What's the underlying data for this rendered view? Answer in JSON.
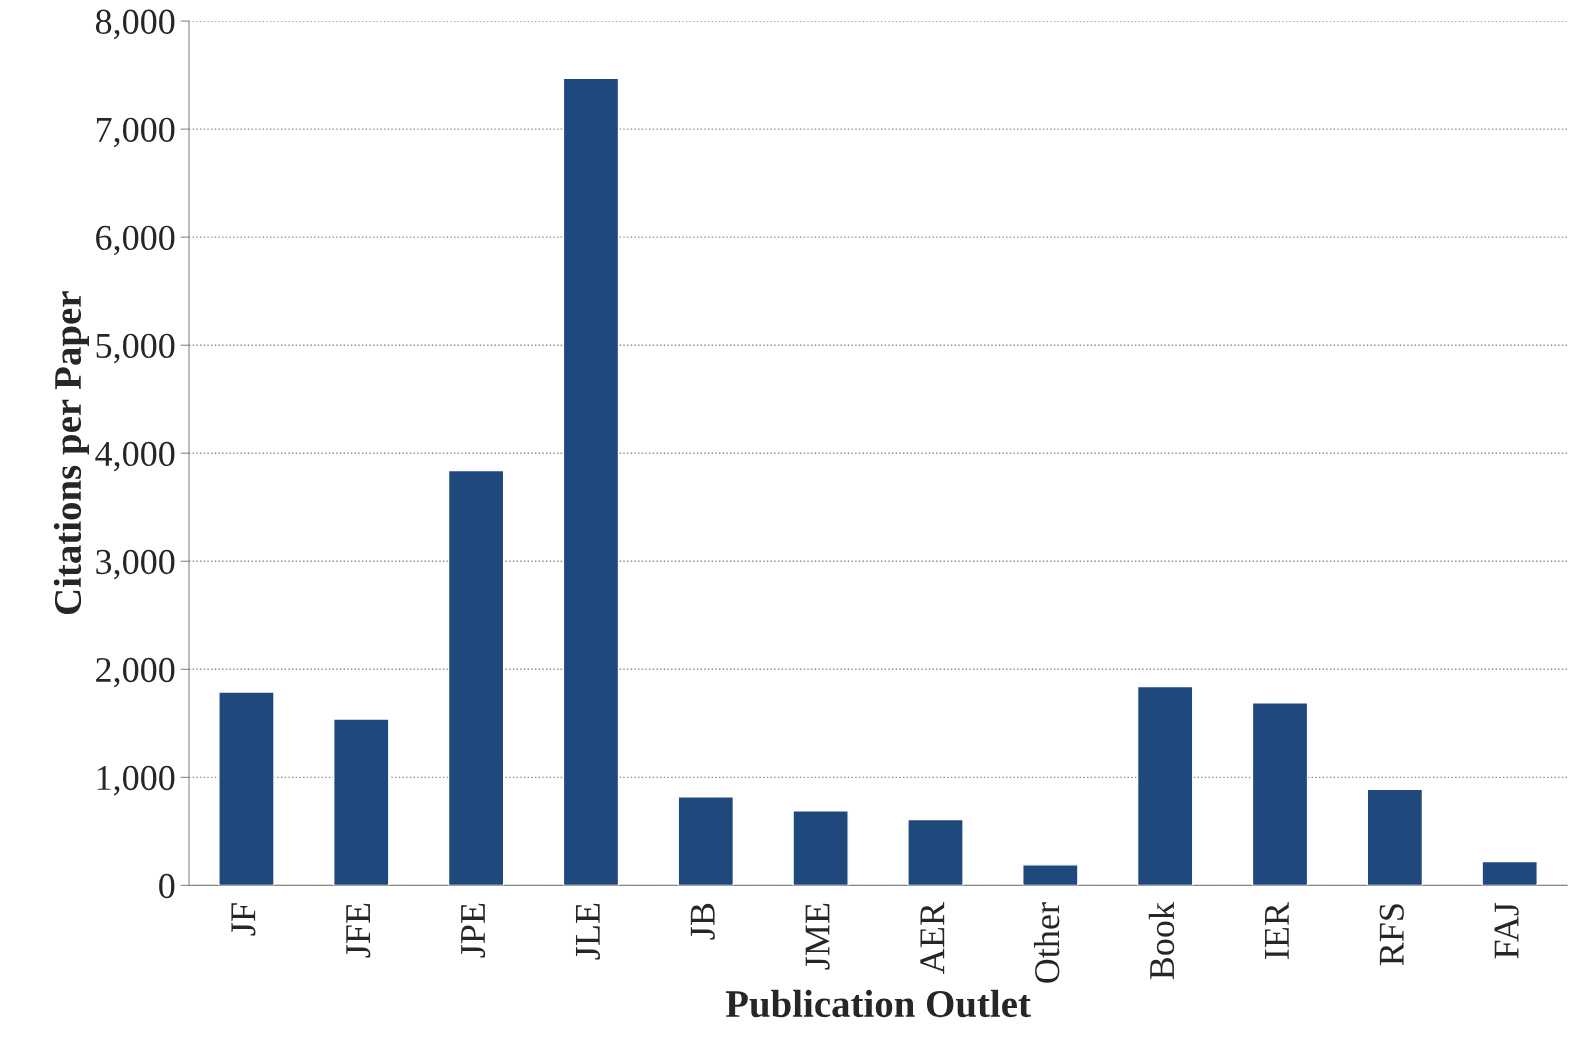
{
  "chart_data": {
    "type": "bar",
    "xlabel": "Publication Outlet",
    "ylabel": "Citations per Paper",
    "categories": [
      "JF",
      "JFE",
      "JPE",
      "JLE",
      "JB",
      "JME",
      "AER",
      "Other",
      "Book",
      "IER",
      "RFS",
      "FAJ"
    ],
    "values": [
      1790,
      1540,
      3840,
      7470,
      820,
      690,
      610,
      190,
      1840,
      1690,
      890,
      220
    ],
    "color": "#1f497d",
    "ylim": [
      0,
      8000
    ],
    "yticks": [
      {
        "value": 0,
        "label": "0"
      },
      {
        "value": 1000,
        "label": "1,000"
      },
      {
        "value": 2000,
        "label": "2,000"
      },
      {
        "value": 3000,
        "label": "3,000"
      },
      {
        "value": 4000,
        "label": "4,000"
      },
      {
        "value": 5000,
        "label": "5,000"
      },
      {
        "value": 6000,
        "label": "6,000"
      },
      {
        "value": 7000,
        "label": "7,000"
      },
      {
        "value": 8000,
        "label": "8,000"
      }
    ],
    "grid": "y"
  }
}
